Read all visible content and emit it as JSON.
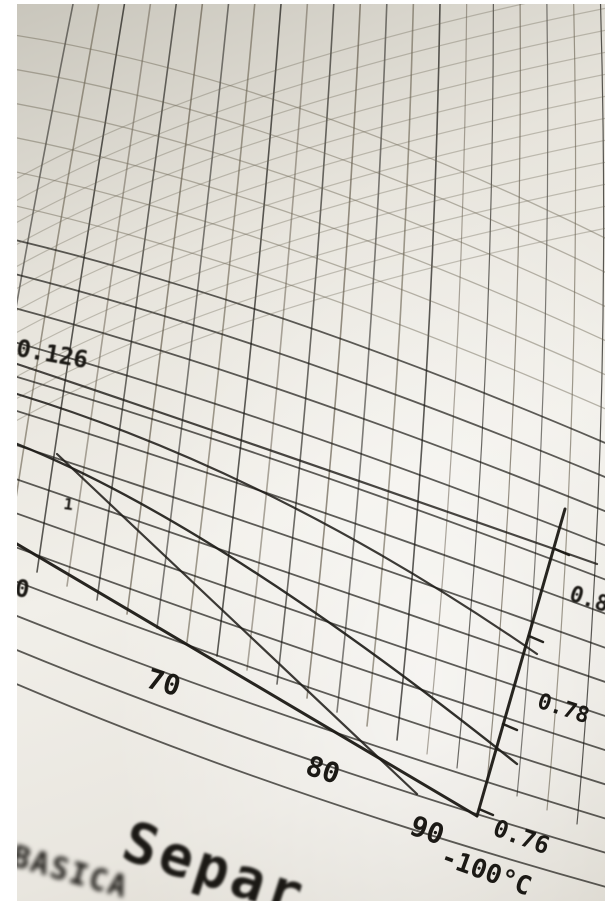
{
  "photo": {
    "subject": "close-up photograph of a printed engineering chart on curved paper",
    "colors": {
      "paper": "#ece9e2",
      "ink": "#1b1915",
      "ink_faded": "#6b6353"
    }
  },
  "labels": {
    "scale_top": "0.126",
    "left_tick": "0",
    "left_small": "1",
    "x_70": "70",
    "x_80": "80",
    "x_90": "90",
    "x_100": "-100°C",
    "y_076": "0.76",
    "y_078": "0.78",
    "y_08": "0.8",
    "caption": "Separ",
    "caption_small": "BASICA"
  }
}
